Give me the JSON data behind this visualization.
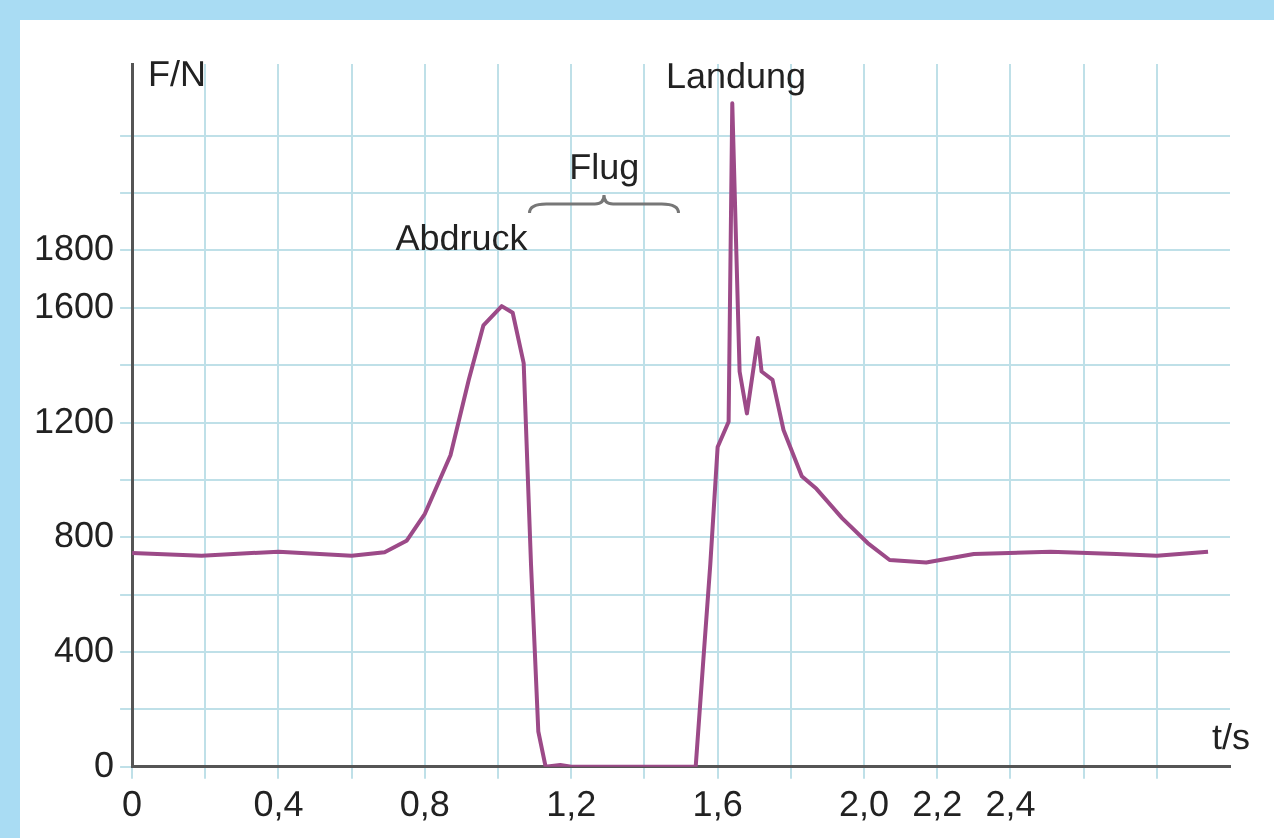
{
  "chart_data": {
    "type": "line",
    "xlabel": "t/s",
    "ylabel": "F/N",
    "x": [
      0,
      0.19,
      0.4,
      0.6,
      0.69,
      0.75,
      0.8,
      0.87,
      0.92,
      0.96,
      1.01,
      1.04,
      1.07,
      1.09,
      1.11,
      1.13,
      1.17,
      1.2,
      1.54,
      1.56,
      1.58,
      1.6,
      1.63,
      1.64,
      1.66,
      1.68,
      1.71,
      1.72,
      1.75,
      1.78,
      1.83,
      1.87,
      1.94,
      2.01,
      2.07,
      2.17,
      2.3,
      2.51,
      2.69,
      2.8,
      2.94
    ],
    "series": [
      {
        "color": "#9c4a88",
        "values": [
          745,
          736,
          750,
          736,
          748,
          788,
          882,
          1086,
          1349,
          1539,
          1606,
          1583,
          1407,
          707,
          123,
          0,
          6,
          0,
          0,
          356,
          707,
          1115,
          1203,
          2313,
          1378,
          1232,
          1495,
          1378,
          1349,
          1174,
          1013,
          969,
          867,
          780,
          721,
          712,
          742,
          750,
          742,
          736,
          750
        ]
      }
    ],
    "xlim": [
      0,
      3.0
    ],
    "ylim": [
      0,
      2450
    ],
    "xticks": [
      0,
      {
        "value": 0.2,
        "label": null
      },
      {
        "value": 0.4,
        "label": "0,4"
      },
      {
        "value": 0.6,
        "label": null
      },
      {
        "value": 0.8,
        "label": "0,8"
      },
      {
        "value": 1.0,
        "label": null
      },
      {
        "value": 1.2,
        "label": "1,2"
      },
      {
        "value": 1.4,
        "label": null
      },
      {
        "value": 1.6,
        "label": "1,6"
      },
      {
        "value": 1.8,
        "label": null
      },
      {
        "value": 2.0,
        "label": "2,0"
      },
      {
        "value": 2.2,
        "label": "2,2"
      },
      {
        "value": 2.4,
        "label": "2,4"
      },
      {
        "value": 2.6,
        "label": null
      },
      {
        "value": 2.8,
        "label": null
      }
    ],
    "yticks": [
      0,
      {
        "value": 200,
        "label": null
      },
      400,
      {
        "value": 600,
        "label": null
      },
      800,
      {
        "value": 1000,
        "label": null
      },
      1200,
      {
        "value": 1400,
        "label": null
      },
      1600,
      1800,
      {
        "value": 2000,
        "label": null
      },
      {
        "value": 2200,
        "label": null
      }
    ],
    "grid": true,
    "legend": false,
    "marker": "none",
    "line_style": "solid",
    "annotations": [
      "Abdruck",
      "Flug",
      "Landung"
    ]
  }
}
